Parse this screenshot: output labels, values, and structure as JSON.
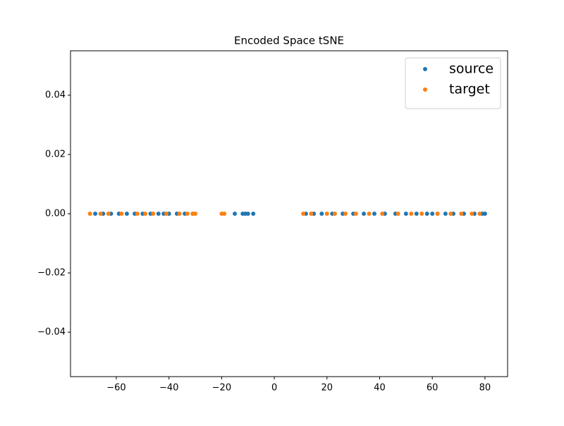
{
  "chart_data": {
    "type": "scatter",
    "title": "Encoded Space tSNE",
    "xlim": [
      -77.4,
      88.6
    ],
    "xticks": [
      {
        "value": -60,
        "label": "−60"
      },
      {
        "value": -40,
        "label": "−40"
      },
      {
        "value": -20,
        "label": "−20"
      },
      0,
      20,
      40,
      60,
      80
    ],
    "ylim": [
      -0.055,
      0.055
    ],
    "yticks": [
      {
        "value": -0.04,
        "label": "−0.04"
      },
      {
        "value": -0.02,
        "label": "−0.02"
      },
      {
        "value": 0,
        "label": "0.00"
      },
      {
        "value": 0.02,
        "label": "0.02"
      },
      {
        "value": 0.04,
        "label": "0.04"
      }
    ],
    "grid": false,
    "legend": "upper right",
    "series": [
      {
        "name": "source",
        "color": "#1f77b4",
        "x": [
          -68,
          -65,
          -62,
          -59,
          -56,
          -53,
          -50,
          -47,
          -44,
          -42,
          -40,
          -37,
          -34,
          -31,
          -15,
          -12,
          -11,
          -10,
          -8,
          12,
          15,
          18,
          22,
          26,
          30,
          34,
          38,
          42,
          46,
          50,
          54,
          58,
          60,
          62,
          65,
          68,
          72,
          76,
          79,
          80
        ],
        "values": [
          0,
          0,
          0,
          0,
          0,
          0,
          0,
          0,
          0,
          0,
          0,
          0,
          0,
          0,
          0,
          0,
          0,
          0,
          0,
          0,
          0,
          0,
          0,
          0,
          0,
          0,
          0,
          0,
          0,
          0,
          0,
          0,
          0,
          0,
          0,
          0,
          0,
          0,
          0,
          0
        ]
      },
      {
        "name": "target",
        "color": "#ff7f0e",
        "x": [
          -70,
          -66,
          -63,
          -58,
          -52,
          -49,
          -46,
          -41,
          -36,
          -33,
          -31,
          -30,
          -20,
          -19,
          11,
          14,
          20,
          23,
          27,
          31,
          36,
          41,
          47,
          52,
          56,
          62,
          67,
          71,
          75,
          78
        ],
        "values": [
          0,
          0,
          0,
          0,
          0,
          0,
          0,
          0,
          0,
          0,
          0,
          0,
          0,
          0,
          0,
          0,
          0,
          0,
          0,
          0,
          0,
          0,
          0,
          0,
          0,
          0,
          0,
          0,
          0,
          0
        ]
      }
    ]
  }
}
